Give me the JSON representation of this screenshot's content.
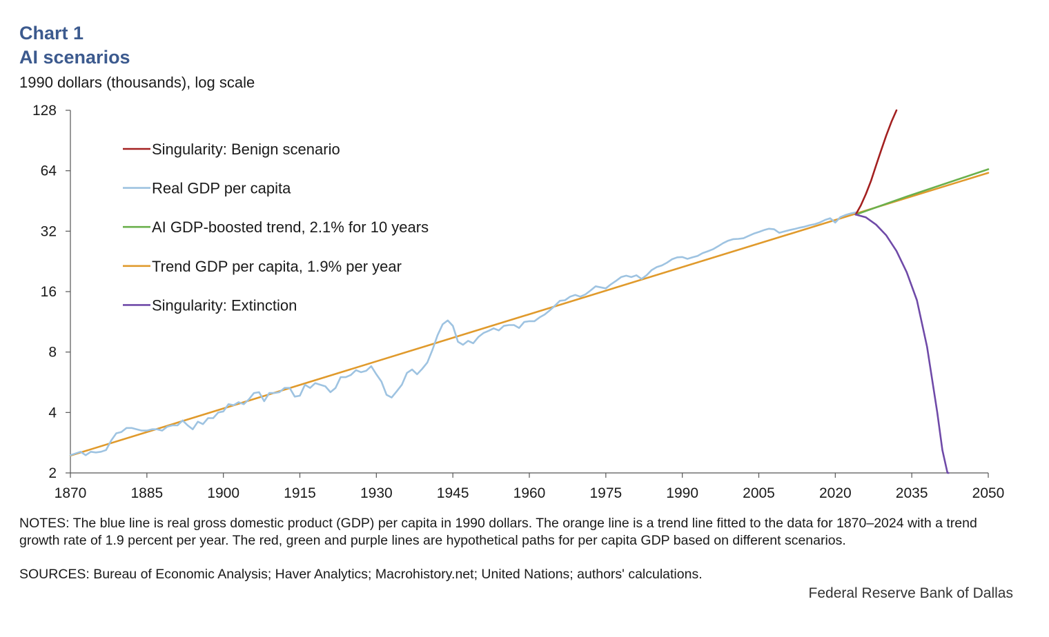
{
  "header": {
    "chart_label": "Chart 1",
    "title": "AI scenarios",
    "units": "1990 dollars (thousands),  log scale"
  },
  "footer": {
    "notes": "NOTES: The blue line is real gross domestic product (GDP) per capita in 1990 dollars. The orange line is a trend line fitted to the data for 1870–2024 with a trend growth rate of 1.9 percent per year. The red, green and purple lines are hypothetical paths for per capita GDP based on different scenarios.",
    "sources": "SOURCES: Bureau of Economic Analysis; Haver Analytics; Macrohistory.net; United Nations; authors' calculations.",
    "credit": "Federal Reserve Bank of Dallas"
  },
  "chart_data": {
    "type": "line",
    "title": "AI scenarios",
    "ylabel": "1990 dollars (thousands),  log scale",
    "xlabel": "",
    "yscale": "log2",
    "ylim": [
      2,
      128
    ],
    "xlim": [
      1870,
      2050
    ],
    "yticks": [
      2,
      4,
      8,
      16,
      32,
      64,
      128
    ],
    "xticks": [
      1870,
      1885,
      1900,
      1915,
      1930,
      1945,
      1960,
      1975,
      1990,
      2005,
      2020,
      2035,
      2050
    ],
    "legend_position": "top-left",
    "series": [
      {
        "name": "Singularity: Benign scenario",
        "color": "#a32020",
        "x": [
          2024,
          2025,
          2026,
          2027,
          2028,
          2029,
          2030,
          2031,
          2032
        ],
        "y": [
          38.7,
          43,
          49,
          57,
          68,
          81,
          96,
          112,
          128
        ]
      },
      {
        "name": "Real GDP per capita",
        "color": "#9ec3e1",
        "x": [
          1870,
          1871,
          1872,
          1873,
          1874,
          1875,
          1876,
          1877,
          1878,
          1879,
          1880,
          1881,
          1882,
          1883,
          1884,
          1885,
          1886,
          1887,
          1888,
          1889,
          1890,
          1891,
          1892,
          1893,
          1894,
          1895,
          1896,
          1897,
          1898,
          1899,
          1900,
          1901,
          1902,
          1903,
          1904,
          1905,
          1906,
          1907,
          1908,
          1909,
          1910,
          1911,
          1912,
          1913,
          1914,
          1915,
          1916,
          1917,
          1918,
          1919,
          1920,
          1921,
          1922,
          1923,
          1924,
          1925,
          1926,
          1927,
          1928,
          1929,
          1930,
          1931,
          1932,
          1933,
          1934,
          1935,
          1936,
          1937,
          1938,
          1939,
          1940,
          1941,
          1942,
          1943,
          1944,
          1945,
          1946,
          1947,
          1948,
          1949,
          1950,
          1951,
          1952,
          1953,
          1954,
          1955,
          1956,
          1957,
          1958,
          1959,
          1960,
          1961,
          1962,
          1963,
          1964,
          1965,
          1966,
          1967,
          1968,
          1969,
          1970,
          1971,
          1972,
          1973,
          1974,
          1975,
          1976,
          1977,
          1978,
          1979,
          1980,
          1981,
          1982,
          1983,
          1984,
          1985,
          1986,
          1987,
          1988,
          1989,
          1990,
          1991,
          1992,
          1993,
          1994,
          1995,
          1996,
          1997,
          1998,
          1999,
          2000,
          2001,
          2002,
          2003,
          2004,
          2005,
          2006,
          2007,
          2008,
          2009,
          2010,
          2011,
          2012,
          2013,
          2014,
          2015,
          2016,
          2017,
          2018,
          2019,
          2020,
          2021,
          2022,
          2023,
          2024
        ],
        "y": [
          2.45,
          2.5,
          2.55,
          2.45,
          2.55,
          2.53,
          2.55,
          2.6,
          2.9,
          3.15,
          3.2,
          3.35,
          3.35,
          3.3,
          3.25,
          3.25,
          3.3,
          3.3,
          3.25,
          3.4,
          3.45,
          3.45,
          3.65,
          3.45,
          3.3,
          3.6,
          3.5,
          3.75,
          3.75,
          4.0,
          4.05,
          4.4,
          4.35,
          4.5,
          4.4,
          4.65,
          5.0,
          5.05,
          4.55,
          5.0,
          5.0,
          5.05,
          5.3,
          5.3,
          4.8,
          4.85,
          5.5,
          5.3,
          5.6,
          5.5,
          5.4,
          5.05,
          5.3,
          6.0,
          6.0,
          6.15,
          6.5,
          6.35,
          6.45,
          6.8,
          6.2,
          5.7,
          4.9,
          4.75,
          5.1,
          5.5,
          6.3,
          6.55,
          6.2,
          6.6,
          7.1,
          8.2,
          9.7,
          11.0,
          11.5,
          10.8,
          9.0,
          8.7,
          9.1,
          8.85,
          9.5,
          9.95,
          10.2,
          10.5,
          10.25,
          10.8,
          10.9,
          10.9,
          10.55,
          11.3,
          11.4,
          11.4,
          11.9,
          12.3,
          12.9,
          13.6,
          14.4,
          14.5,
          15.1,
          15.4,
          15.1,
          15.5,
          16.2,
          17.0,
          16.8,
          16.6,
          17.4,
          18.1,
          18.9,
          19.2,
          18.9,
          19.3,
          18.5,
          19.3,
          20.5,
          21.2,
          21.6,
          22.3,
          23.2,
          23.7,
          23.8,
          23.3,
          23.7,
          24.1,
          24.9,
          25.4,
          26.0,
          26.9,
          27.9,
          28.7,
          29.2,
          29.3,
          29.5,
          30.3,
          31.1,
          31.7,
          32.4,
          32.9,
          32.7,
          31.4,
          31.9,
          32.4,
          32.8,
          33.3,
          33.7,
          34.3,
          34.7,
          35.4,
          36.4,
          37.1,
          35.3,
          37.6,
          38.5,
          39.2,
          39.7
        ]
      },
      {
        "name": "AI GDP-boosted trend, 2.1% for 10 years",
        "color": "#6ab04c",
        "x": [
          2024,
          2034,
          2050
        ],
        "y": [
          38.7,
          47.6,
          65.1
        ]
      },
      {
        "name": "Trend GDP per capita, 1.9% per year",
        "color": "#e09a2c",
        "x": [
          1870,
          2050
        ],
        "y": [
          2.44,
          62.5
        ]
      },
      {
        "name": "Singularity: Extinction",
        "color": "#6f4aa8",
        "x": [
          2024,
          2026,
          2028,
          2030,
          2032,
          2034,
          2036,
          2038,
          2040,
          2041,
          2042,
          2042.2
        ],
        "y": [
          38.7,
          37.5,
          34.5,
          30.5,
          25.5,
          20.0,
          14.5,
          8.5,
          4.0,
          2.6,
          2.0,
          2.0
        ]
      }
    ]
  }
}
